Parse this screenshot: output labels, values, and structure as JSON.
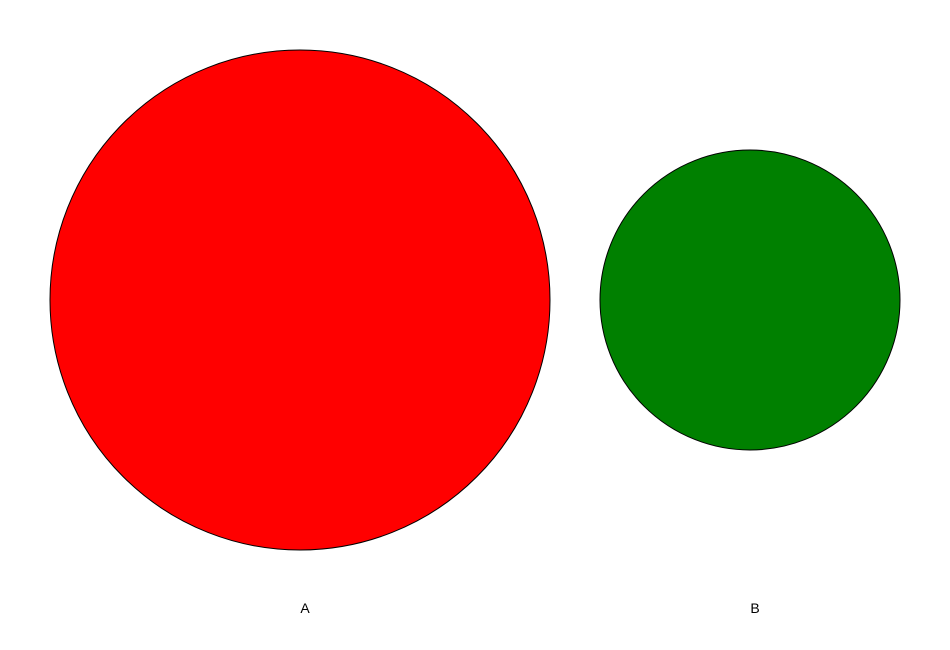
{
  "shapes": [
    {
      "id": "A",
      "label": "A",
      "fill": "#ff0000",
      "stroke": "#000000",
      "relative_size": 500
    },
    {
      "id": "B",
      "label": "B",
      "fill": "#008000",
      "stroke": "#000000",
      "relative_size": 300
    }
  ]
}
